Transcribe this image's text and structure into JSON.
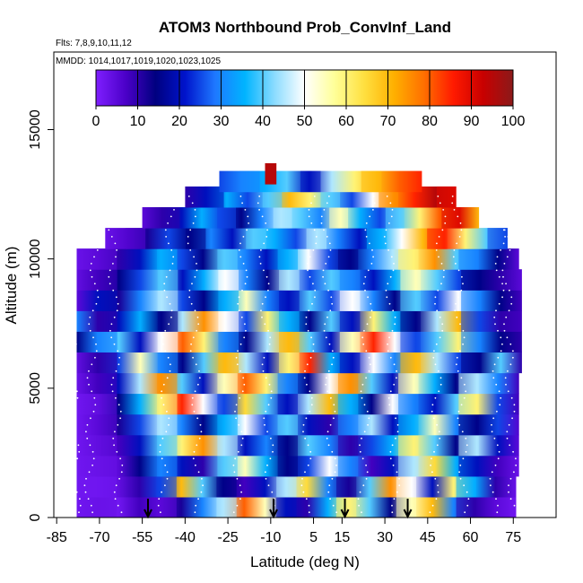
{
  "chart_data": {
    "type": "heatmap",
    "title": "ATOM3 Northbound Prob_ConvInf_Land",
    "flights_label": "Flts: 7,8,9,10,11,12",
    "dates_label": "MMDD: 1014,1017,1019,1020,1023,1025",
    "xlabel": "Latitude (deg N)",
    "ylabel": "Altitude (m)",
    "xlim": [
      -86,
      90
    ],
    "ylim": [
      0,
      18000
    ],
    "x_ticks": [
      -85,
      -70,
      -55,
      -40,
      -25,
      -10,
      5,
      15,
      30,
      45,
      60,
      75
    ],
    "y_ticks": [
      0,
      5000,
      10000,
      15000
    ],
    "colorbar": {
      "min": 0,
      "max": 100,
      "ticks": [
        0,
        10,
        20,
        30,
        40,
        50,
        60,
        70,
        80,
        90,
        100
      ],
      "colors": [
        "#7f1fff",
        "#4b00c8",
        "#000080",
        "#0014cc",
        "#1e78ff",
        "#00b4ff",
        "#8cdcff",
        "#ffffff",
        "#ffff99",
        "#ffe040",
        "#ffb000",
        "#ff7000",
        "#ff1a00",
        "#c80000",
        "#8b1a1a"
      ]
    },
    "flight_marker_latitudes": [
      -53,
      -9,
      16,
      38
    ],
    "altitude_bins": [
      {
        "alt": 400,
        "lat_start": -78,
        "lat_end": 76,
        "values": [
          2,
          3,
          2,
          8,
          5,
          12,
          30,
          45,
          80,
          55,
          20,
          10,
          35,
          60,
          40,
          15,
          55,
          70,
          30,
          10,
          5,
          2
        ]
      },
      {
        "alt": 1200,
        "lat_start": -78,
        "lat_end": 76,
        "values": [
          2,
          2,
          4,
          10,
          25,
          70,
          40,
          15,
          8,
          20,
          45,
          65,
          30,
          12,
          40,
          75,
          50,
          20,
          60,
          35,
          10,
          3
        ]
      },
      {
        "alt": 2000,
        "lat_start": -78,
        "lat_end": 77,
        "values": [
          2,
          3,
          5,
          15,
          30,
          20,
          10,
          40,
          55,
          35,
          15,
          25,
          50,
          30,
          8,
          20,
          45,
          65,
          35,
          20,
          8,
          3
        ]
      },
      {
        "alt": 2800,
        "lat_start": -78,
        "lat_end": 77,
        "values": [
          2,
          4,
          8,
          20,
          40,
          60,
          75,
          45,
          20,
          30,
          15,
          40,
          30,
          10,
          25,
          35,
          60,
          40,
          15,
          45,
          20,
          5
        ]
      },
      {
        "alt": 3600,
        "lat_start": -78,
        "lat_end": 77,
        "values": [
          2,
          5,
          12,
          25,
          45,
          30,
          15,
          35,
          50,
          25,
          40,
          20,
          10,
          30,
          45,
          20,
          35,
          55,
          30,
          15,
          25,
          6
        ]
      },
      {
        "alt": 4400,
        "lat_start": -78,
        "lat_end": 77,
        "values": [
          2,
          4,
          15,
          35,
          60,
          85,
          50,
          25,
          65,
          40,
          20,
          45,
          70,
          35,
          15,
          50,
          30,
          20,
          40,
          60,
          25,
          8
        ]
      },
      {
        "alt": 5200,
        "lat_start": -78,
        "lat_end": 77,
        "values": [
          3,
          8,
          20,
          45,
          75,
          40,
          20,
          55,
          80,
          60,
          30,
          15,
          50,
          75,
          40,
          20,
          55,
          35,
          15,
          45,
          30,
          8
        ]
      },
      {
        "alt": 6000,
        "lat_start": -78,
        "lat_end": 78,
        "values": [
          4,
          10,
          25,
          55,
          30,
          15,
          40,
          70,
          45,
          20,
          60,
          85,
          35,
          20,
          50,
          30,
          70,
          45,
          25,
          15,
          40,
          10
        ]
      },
      {
        "alt": 6800,
        "lat_start": -78,
        "lat_end": 78,
        "values": [
          15,
          30,
          40,
          20,
          50,
          80,
          60,
          30,
          15,
          45,
          70,
          40,
          20,
          55,
          85,
          50,
          25,
          40,
          60,
          30,
          15,
          10
        ]
      },
      {
        "alt": 7600,
        "lat_start": -78,
        "lat_end": 78,
        "values": [
          30,
          10,
          20,
          35,
          15,
          45,
          75,
          50,
          25,
          60,
          35,
          15,
          40,
          20,
          60,
          35,
          15,
          45,
          70,
          25,
          10,
          8
        ]
      },
      {
        "alt": 8400,
        "lat_start": -78,
        "lat_end": 78,
        "values": [
          5,
          20,
          12,
          30,
          45,
          25,
          15,
          35,
          55,
          30,
          20,
          40,
          25,
          50,
          30,
          15,
          40,
          25,
          50,
          30,
          15,
          8
        ]
      },
      {
        "alt": 9200,
        "lat_start": -78,
        "lat_end": 78,
        "values": [
          4,
          8,
          15,
          25,
          40,
          20,
          35,
          50,
          30,
          15,
          45,
          25,
          40,
          30,
          20,
          35,
          55,
          40,
          25,
          15,
          10,
          5
        ]
      },
      {
        "alt": 10000,
        "lat_start": -78,
        "lat_end": 77,
        "values": [
          3,
          5,
          10,
          20,
          35,
          25,
          15,
          40,
          30,
          20,
          35,
          50,
          25,
          15,
          30,
          45,
          60,
          75,
          40,
          30,
          15,
          5
        ]
      },
      {
        "alt": 10800,
        "lat_start": -68,
        "lat_end": 73,
        "values": [
          3,
          6,
          12,
          25,
          15,
          30,
          20,
          40,
          35,
          25,
          45,
          30,
          20,
          35,
          50,
          70,
          85,
          60,
          40,
          25
        ]
      },
      {
        "alt": 11600,
        "lat_start": -55,
        "lat_end": 63,
        "values": [
          5,
          10,
          20,
          35,
          25,
          15,
          30,
          45,
          40,
          30,
          55,
          35,
          25,
          40,
          60,
          80,
          90,
          70
        ]
      },
      {
        "alt": 12400,
        "lat_start": -40,
        "lat_end": 55,
        "values": [
          10,
          20,
          35,
          25,
          40,
          70,
          60,
          40,
          25,
          50,
          75,
          85,
          95,
          90
        ]
      },
      {
        "alt": 13000,
        "lat_start": -28,
        "lat_end": 43,
        "values": [
          25,
          30,
          35,
          40,
          20,
          45,
          60,
          70,
          80,
          85
        ]
      },
      {
        "alt": 13300,
        "lat_start": -12,
        "lat_end": -8,
        "values": [
          95
        ]
      }
    ]
  }
}
